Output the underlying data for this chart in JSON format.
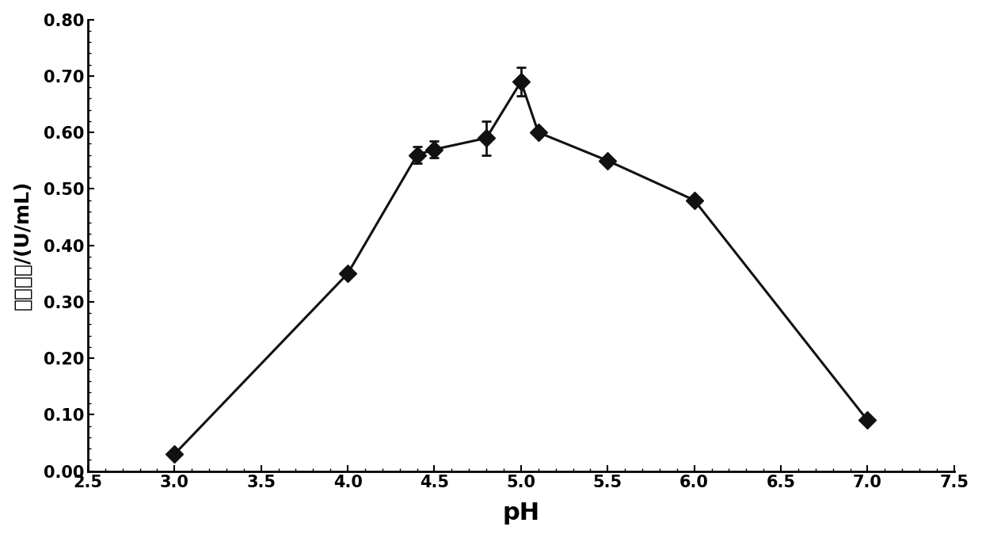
{
  "x": [
    3.0,
    4.0,
    4.4,
    4.5,
    4.8,
    5.0,
    5.1,
    5.5,
    6.0,
    7.0
  ],
  "y": [
    0.03,
    0.35,
    0.56,
    0.57,
    0.59,
    0.69,
    0.6,
    0.55,
    0.48,
    0.09
  ],
  "yerr": [
    0.0,
    0.0,
    0.015,
    0.015,
    0.03,
    0.025,
    0.0,
    0.0,
    0.0,
    0.0
  ],
  "xlabel": "pH",
  "ylabel": "滤纸酶活/(U/mL)",
  "xlim": [
    2.5,
    7.5
  ],
  "ylim": [
    0.0,
    0.8
  ],
  "xticks": [
    2.5,
    3.0,
    3.5,
    4.0,
    4.5,
    5.0,
    5.5,
    6.0,
    6.5,
    7.0,
    7.5
  ],
  "yticks": [
    0.0,
    0.1,
    0.2,
    0.3,
    0.4,
    0.5,
    0.6,
    0.7,
    0.8
  ],
  "line_color": "#111111",
  "marker_color": "#111111",
  "background_color": "#ffffff",
  "marker": "D",
  "markersize": 11,
  "linewidth": 2.2,
  "capsize": 4
}
